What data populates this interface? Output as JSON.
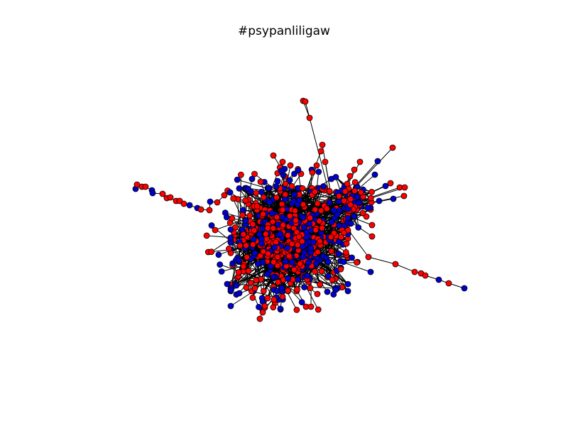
{
  "title": "#psypanliligaw",
  "colors": {
    "node_red": "#ff0000",
    "node_blue": "#0000cc",
    "edge": "#000000",
    "node_outline": "#000000",
    "background": "#ffffff"
  },
  "legend": "none",
  "axes": "hidden"
}
